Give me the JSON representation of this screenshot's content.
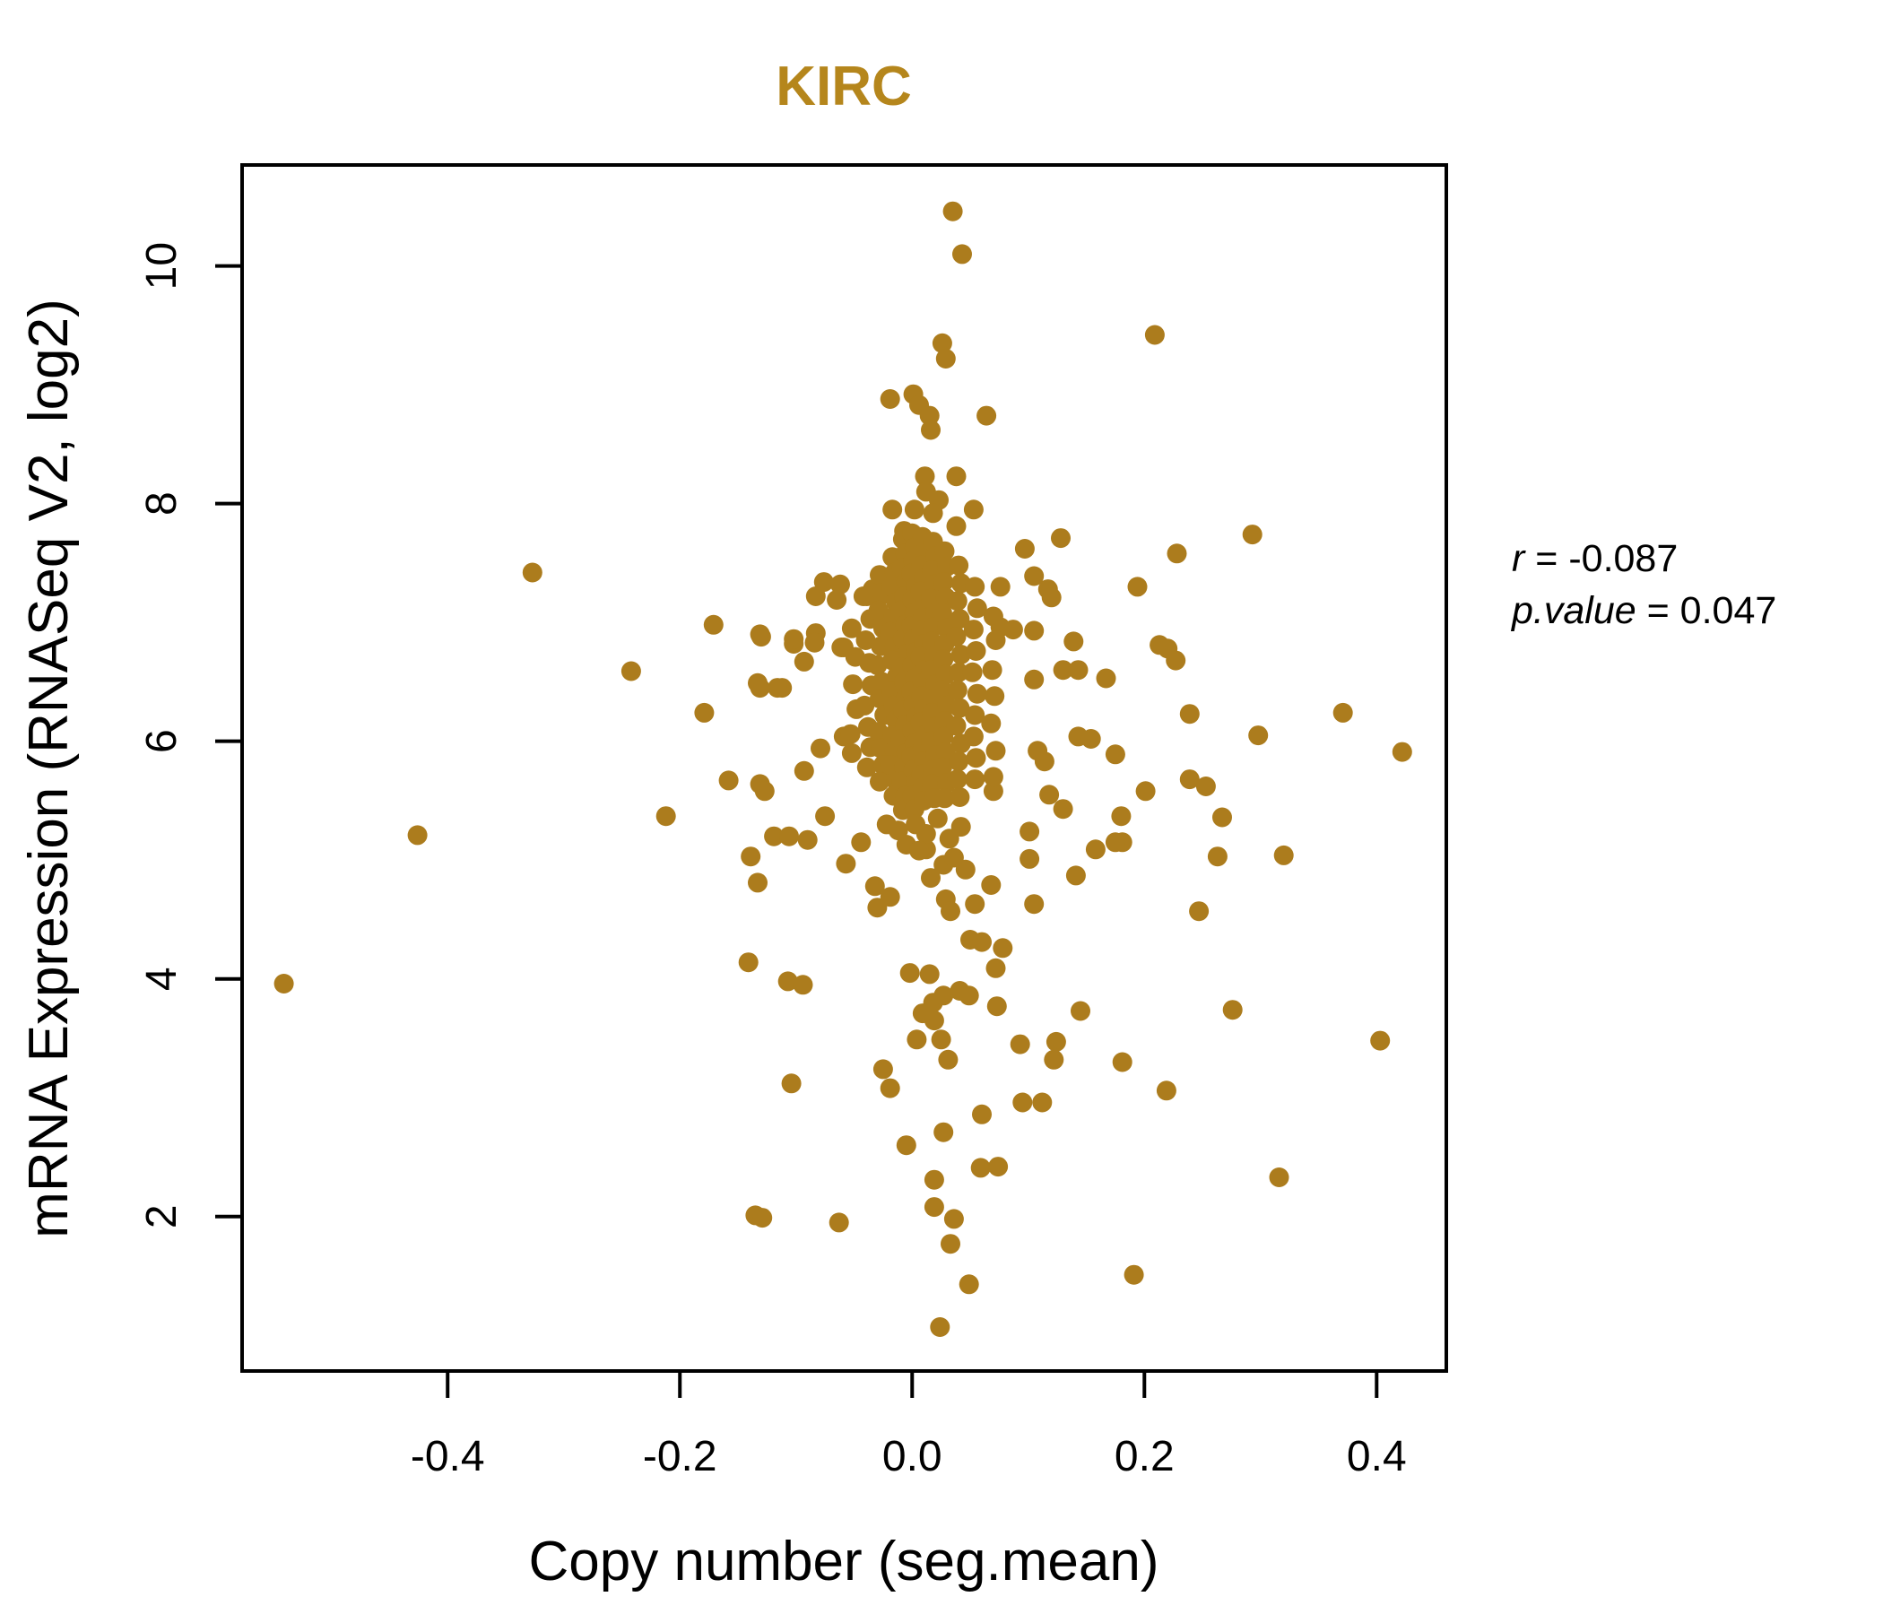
{
  "figure": {
    "title": "KIRC",
    "title_color": "#B5861C",
    "annotation": {
      "r_label": "r",
      "r_rest": " = -0.087",
      "p_label": "p.value",
      "p_rest": " = 0.047"
    }
  },
  "chart_data": {
    "type": "scatter",
    "title": "KIRC",
    "xlabel": "Copy number (seg.mean)",
    "ylabel": "mRNA Expression (RNASeq V2, log2)",
    "xlim": [
      -0.577,
      0.46
    ],
    "ylim": [
      0.7,
      10.85
    ],
    "x_ticks": [
      -0.4,
      -0.2,
      0.0,
      0.2,
      0.4
    ],
    "x_tick_labels": [
      "-0.4",
      "-0.2",
      "0.0",
      "0.2",
      "0.4"
    ],
    "y_ticks": [
      2,
      4,
      6,
      8,
      10
    ],
    "y_tick_labels": [
      "2",
      "4",
      "6",
      "8",
      "10"
    ],
    "grid": false,
    "legend_position": "none",
    "marker": {
      "color": "#AC7C1D",
      "radius_px": 11
    },
    "stats": {
      "r": -0.087,
      "p_value": 0.047
    },
    "points": [
      [
        0.035,
        10.46
      ],
      [
        0.043,
        10.1
      ],
      [
        0.209,
        9.42
      ],
      [
        0.026,
        9.35
      ],
      [
        0.029,
        9.22
      ],
      [
        -0.019,
        8.88
      ],
      [
        0.001,
        8.92
      ],
      [
        0.006,
        8.83
      ],
      [
        0.015,
        8.74
      ],
      [
        0.016,
        8.62
      ],
      [
        0.064,
        8.74
      ],
      [
        0.011,
        8.23
      ],
      [
        0.038,
        8.23
      ],
      [
        0.012,
        8.1
      ],
      [
        0.023,
        8.03
      ],
      [
        -0.017,
        7.95
      ],
      [
        0.002,
        7.95
      ],
      [
        0.018,
        7.92
      ],
      [
        0.053,
        7.95
      ],
      [
        0.038,
        7.81
      ],
      [
        -0.007,
        7.77
      ],
      [
        0.293,
        7.74
      ],
      [
        0.128,
        7.71
      ],
      [
        0.097,
        7.62
      ],
      [
        0.228,
        7.58
      ],
      [
        0.105,
        7.39
      ],
      [
        0.117,
        7.28
      ],
      [
        0.12,
        7.21
      ],
      [
        0.076,
        7.3
      ],
      [
        0.194,
        7.3
      ],
      [
        -0.076,
        7.34
      ],
      [
        -0.062,
        7.32
      ],
      [
        -0.065,
        7.19
      ],
      [
        -0.327,
        7.42
      ],
      [
        -0.034,
        7.28
      ],
      [
        -0.042,
        7.22
      ],
      [
        -0.029,
        7.21
      ],
      [
        -0.083,
        7.22
      ],
      [
        -0.083,
        6.91
      ],
      [
        -0.059,
        6.79
      ],
      [
        0.076,
        6.96
      ],
      [
        0.087,
        6.94
      ],
      [
        0.105,
        6.93
      ],
      [
        0.139,
        6.84
      ],
      [
        -0.171,
        6.98
      ],
      [
        -0.13,
        6.88
      ],
      [
        -0.102,
        6.82
      ],
      [
        -0.131,
        6.9
      ],
      [
        -0.102,
        6.86
      ],
      [
        -0.084,
        6.83
      ],
      [
        -0.061,
        6.79
      ],
      [
        0.213,
        6.81
      ],
      [
        0.13,
        6.6
      ],
      [
        0.143,
        6.6
      ],
      [
        0.167,
        6.53
      ],
      [
        0.105,
        6.52
      ],
      [
        -0.093,
        6.67
      ],
      [
        -0.242,
        6.59
      ],
      [
        -0.131,
        6.45
      ],
      [
        -0.112,
        6.45
      ],
      [
        0.22,
        6.78
      ],
      [
        0.227,
        6.68
      ],
      [
        -0.133,
        6.49
      ],
      [
        -0.116,
        6.45
      ],
      [
        -0.179,
        6.24
      ],
      [
        0.239,
        6.23
      ],
      [
        0.371,
        6.24
      ],
      [
        0.298,
        6.05
      ],
      [
        0.143,
        6.04
      ],
      [
        0.154,
        6.02
      ],
      [
        -0.059,
        6.04
      ],
      [
        0.108,
        5.92
      ],
      [
        0.422,
        5.91
      ],
      [
        0.239,
        5.68
      ],
      [
        0.201,
        5.58
      ],
      [
        -0.158,
        5.67
      ],
      [
        -0.131,
        5.64
      ],
      [
        -0.127,
        5.58
      ],
      [
        -0.093,
        5.75
      ],
      [
        0.175,
        5.89
      ],
      [
        0.114,
        5.83
      ],
      [
        -0.052,
        5.9
      ],
      [
        -0.079,
        5.94
      ],
      [
        -0.019,
        5.74
      ],
      [
        -0.001,
        5.77
      ],
      [
        0.118,
        5.55
      ],
      [
        0.07,
        5.58
      ],
      [
        0.253,
        5.62
      ],
      [
        -0.212,
        5.37
      ],
      [
        -0.426,
        5.21
      ],
      [
        -0.119,
        5.2
      ],
      [
        -0.106,
        5.2
      ],
      [
        -0.139,
        5.03
      ],
      [
        0.267,
        5.36
      ],
      [
        0.263,
        5.03
      ],
      [
        0.32,
        5.04
      ],
      [
        0.18,
        5.37
      ],
      [
        0.181,
        5.15
      ],
      [
        0.13,
        5.43
      ],
      [
        0.101,
        5.24
      ],
      [
        -0.005,
        5.13
      ],
      [
        0.012,
        5.09
      ],
      [
        0.027,
        4.96
      ],
      [
        -0.044,
        5.15
      ],
      [
        -0.075,
        5.37
      ],
      [
        -0.09,
        5.17
      ],
      [
        0.158,
        5.09
      ],
      [
        0.175,
        5.15
      ],
      [
        0.141,
        4.87
      ],
      [
        -0.133,
        4.81
      ],
      [
        -0.141,
        4.14
      ],
      [
        -0.032,
        4.78
      ],
      [
        -0.019,
        4.69
      ],
      [
        0.029,
        4.67
      ],
      [
        0.046,
        4.92
      ],
      [
        0.068,
        4.79
      ],
      [
        0.078,
        4.26
      ],
      [
        0.033,
        4.57
      ],
      [
        0.054,
        4.63
      ],
      [
        -0.057,
        4.97
      ],
      [
        -0.03,
        4.6
      ],
      [
        0.105,
        4.63
      ],
      [
        0.101,
        5.01
      ],
      [
        0.247,
        4.57
      ],
      [
        -0.107,
        3.98
      ],
      [
        -0.094,
        3.95
      ],
      [
        -0.541,
        3.96
      ],
      [
        -0.002,
        4.05
      ],
      [
        0.015,
        4.04
      ],
      [
        0.05,
        4.33
      ],
      [
        0.06,
        4.31
      ],
      [
        0.072,
        4.09
      ],
      [
        0.018,
        3.8
      ],
      [
        0.027,
        3.86
      ],
      [
        0.041,
        3.9
      ],
      [
        0.049,
        3.86
      ],
      [
        0.073,
        3.77
      ],
      [
        0.009,
        3.71
      ],
      [
        0.019,
        3.65
      ],
      [
        0.004,
        3.49
      ],
      [
        0.025,
        3.49
      ],
      [
        0.145,
        3.73
      ],
      [
        0.093,
        3.45
      ],
      [
        0.124,
        3.47
      ],
      [
        0.276,
        3.74
      ],
      [
        0.403,
        3.48
      ],
      [
        0.031,
        3.32
      ],
      [
        -0.025,
        3.24
      ],
      [
        -0.019,
        3.08
      ],
      [
        -0.104,
        3.12
      ],
      [
        0.122,
        3.32
      ],
      [
        0.181,
        3.3
      ],
      [
        0.219,
        3.06
      ],
      [
        0.095,
        2.96
      ],
      [
        0.112,
        2.96
      ],
      [
        0.06,
        2.86
      ],
      [
        0.027,
        2.71
      ],
      [
        -0.005,
        2.6
      ],
      [
        0.059,
        2.41
      ],
      [
        0.074,
        2.42
      ],
      [
        0.019,
        2.31
      ],
      [
        0.316,
        2.33
      ],
      [
        0.019,
        2.08
      ],
      [
        -0.135,
        2.01
      ],
      [
        -0.129,
        1.99
      ],
      [
        0.036,
        1.98
      ],
      [
        -0.063,
        1.95
      ],
      [
        0.033,
        1.77
      ],
      [
        0.191,
        1.51
      ],
      [
        0.049,
        1.43
      ],
      [
        0.024,
        1.07
      ],
      [
        -0.052,
        6.95
      ],
      [
        -0.049,
        6.71
      ],
      [
        -0.051,
        6.48
      ],
      [
        -0.048,
        6.27
      ],
      [
        -0.053,
        6.06
      ],
      [
        -0.039,
        7.22
      ],
      [
        -0.036,
        7.03
      ],
      [
        -0.04,
        6.85
      ],
      [
        -0.037,
        6.66
      ],
      [
        -0.035,
        6.47
      ],
      [
        -0.041,
        6.3
      ],
      [
        -0.038,
        6.12
      ],
      [
        -0.036,
        5.95
      ],
      [
        -0.039,
        5.78
      ],
      [
        -0.028,
        7.4
      ],
      [
        -0.026,
        7.25
      ],
      [
        -0.029,
        7.1
      ],
      [
        -0.025,
        6.95
      ],
      [
        -0.027,
        6.8
      ],
      [
        -0.03,
        6.64
      ],
      [
        -0.026,
        6.5
      ],
      [
        -0.028,
        6.36
      ],
      [
        -0.024,
        6.22
      ],
      [
        -0.029,
        6.08
      ],
      [
        -0.027,
        5.94
      ],
      [
        -0.025,
        5.8
      ],
      [
        -0.028,
        5.66
      ],
      [
        -0.017,
        7.55
      ],
      [
        -0.015,
        7.42
      ],
      [
        -0.018,
        7.3
      ],
      [
        -0.014,
        7.17
      ],
      [
        -0.016,
        7.05
      ],
      [
        -0.019,
        6.92
      ],
      [
        -0.015,
        6.8
      ],
      [
        -0.017,
        6.68
      ],
      [
        -0.013,
        6.55
      ],
      [
        -0.018,
        6.42
      ],
      [
        -0.016,
        6.3
      ],
      [
        -0.014,
        6.18
      ],
      [
        -0.017,
        6.05
      ],
      [
        -0.015,
        5.92
      ],
      [
        -0.019,
        5.8
      ],
      [
        -0.014,
        5.67
      ],
      [
        -0.016,
        5.54
      ],
      [
        -0.008,
        7.7
      ],
      [
        -0.006,
        7.58
      ],
      [
        -0.009,
        7.46
      ],
      [
        -0.005,
        7.34
      ],
      [
        -0.007,
        7.22
      ],
      [
        -0.01,
        7.1
      ],
      [
        -0.006,
        6.98
      ],
      [
        -0.008,
        6.86
      ],
      [
        -0.004,
        6.74
      ],
      [
        -0.009,
        6.62
      ],
      [
        -0.007,
        6.5
      ],
      [
        -0.005,
        6.38
      ],
      [
        -0.008,
        6.26
      ],
      [
        -0.006,
        6.14
      ],
      [
        -0.01,
        6.02
      ],
      [
        -0.005,
        5.9
      ],
      [
        -0.007,
        5.78
      ],
      [
        -0.009,
        5.66
      ],
      [
        -0.006,
        5.54
      ],
      [
        -0.008,
        5.42
      ],
      [
        0.0,
        7.75
      ],
      [
        0.002,
        7.63
      ],
      [
        0.001,
        7.52
      ],
      [
        -0.001,
        7.41
      ],
      [
        0.003,
        7.3
      ],
      [
        0.0,
        7.19
      ],
      [
        0.002,
        7.08
      ],
      [
        -0.001,
        6.97
      ],
      [
        0.001,
        6.86
      ],
      [
        0.003,
        6.75
      ],
      [
        0.0,
        6.64
      ],
      [
        0.002,
        6.53
      ],
      [
        -0.001,
        6.42
      ],
      [
        0.001,
        6.31
      ],
      [
        0.003,
        6.2
      ],
      [
        0.0,
        6.09
      ],
      [
        0.002,
        5.98
      ],
      [
        -0.001,
        5.87
      ],
      [
        0.001,
        5.76
      ],
      [
        0.003,
        5.65
      ],
      [
        0.0,
        5.54
      ],
      [
        0.002,
        5.43
      ],
      [
        0.009,
        7.72
      ],
      [
        0.011,
        7.6
      ],
      [
        0.008,
        7.48
      ],
      [
        0.01,
        7.37
      ],
      [
        0.007,
        7.26
      ],
      [
        0.011,
        7.15
      ],
      [
        0.009,
        7.04
      ],
      [
        0.008,
        6.93
      ],
      [
        0.01,
        6.82
      ],
      [
        0.007,
        6.71
      ],
      [
        0.011,
        6.6
      ],
      [
        0.009,
        6.49
      ],
      [
        0.008,
        6.38
      ],
      [
        0.01,
        6.27
      ],
      [
        0.007,
        6.16
      ],
      [
        0.011,
        6.05
      ],
      [
        0.009,
        5.94
      ],
      [
        0.01,
        5.83
      ],
      [
        0.008,
        5.72
      ],
      [
        0.009,
        5.61
      ],
      [
        0.01,
        5.5
      ],
      [
        0.018,
        7.68
      ],
      [
        0.02,
        7.56
      ],
      [
        0.017,
        7.44
      ],
      [
        0.019,
        7.32
      ],
      [
        0.016,
        7.2
      ],
      [
        0.02,
        7.08
      ],
      [
        0.018,
        6.96
      ],
      [
        0.017,
        6.84
      ],
      [
        0.019,
        6.72
      ],
      [
        0.016,
        6.6
      ],
      [
        0.02,
        6.48
      ],
      [
        0.018,
        6.36
      ],
      [
        0.017,
        6.24
      ],
      [
        0.019,
        6.12
      ],
      [
        0.016,
        6.0
      ],
      [
        0.02,
        5.88
      ],
      [
        0.018,
        5.76
      ],
      [
        0.017,
        5.64
      ],
      [
        0.019,
        5.52
      ],
      [
        0.028,
        7.6
      ],
      [
        0.03,
        7.47
      ],
      [
        0.027,
        7.34
      ],
      [
        0.029,
        7.21
      ],
      [
        0.026,
        7.08
      ],
      [
        0.03,
        6.95
      ],
      [
        0.028,
        6.82
      ],
      [
        0.027,
        6.69
      ],
      [
        0.029,
        6.56
      ],
      [
        0.026,
        6.43
      ],
      [
        0.03,
        6.3
      ],
      [
        0.028,
        6.17
      ],
      [
        0.027,
        6.04
      ],
      [
        0.029,
        5.91
      ],
      [
        0.026,
        5.78
      ],
      [
        0.03,
        5.65
      ],
      [
        0.028,
        5.52
      ],
      [
        0.04,
        7.48
      ],
      [
        0.042,
        7.33
      ],
      [
        0.039,
        7.18
      ],
      [
        0.041,
        7.03
      ],
      [
        0.038,
        6.88
      ],
      [
        0.042,
        6.73
      ],
      [
        0.04,
        6.58
      ],
      [
        0.039,
        6.43
      ],
      [
        0.041,
        6.28
      ],
      [
        0.038,
        6.13
      ],
      [
        0.042,
        5.98
      ],
      [
        0.04,
        5.83
      ],
      [
        0.039,
        5.68
      ],
      [
        0.041,
        5.53
      ],
      [
        0.054,
        7.3
      ],
      [
        0.056,
        7.12
      ],
      [
        0.053,
        6.94
      ],
      [
        0.055,
        6.76
      ],
      [
        0.052,
        6.58
      ],
      [
        0.056,
        6.4
      ],
      [
        0.054,
        6.22
      ],
      [
        0.053,
        6.04
      ],
      [
        0.055,
        5.86
      ],
      [
        0.054,
        5.68
      ],
      [
        0.07,
        7.05
      ],
      [
        0.072,
        6.85
      ],
      [
        0.069,
        6.6
      ],
      [
        0.071,
        6.38
      ],
      [
        0.068,
        6.15
      ],
      [
        0.072,
        5.92
      ],
      [
        0.07,
        5.7
      ],
      [
        0.003,
        5.3
      ],
      [
        0.012,
        5.22
      ],
      [
        0.022,
        5.35
      ],
      [
        0.032,
        5.18
      ],
      [
        0.042,
        5.28
      ],
      [
        -0.012,
        5.25
      ],
      [
        0.006,
        5.08
      ],
      [
        0.036,
        5.02
      ],
      [
        -0.022,
        5.3
      ],
      [
        0.016,
        4.85
      ]
    ]
  }
}
